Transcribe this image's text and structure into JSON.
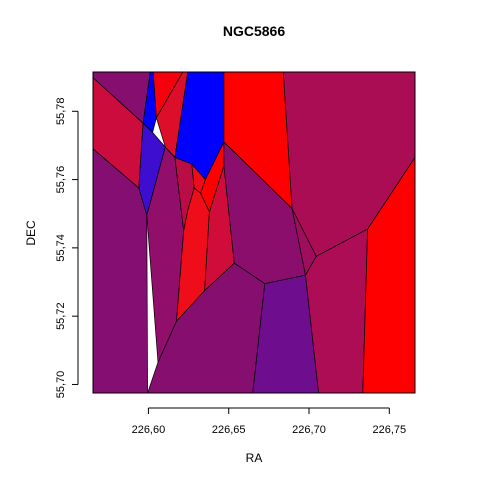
{
  "chart_data": {
    "type": "voronoi",
    "title": "NGC5866",
    "xlabel": "RA",
    "ylabel": "DEC",
    "xlim": [
      226.5655,
      226.766
    ],
    "ylim": [
      55.6975,
      55.7915
    ],
    "grid": false,
    "x_ticks": [
      226.6,
      226.65,
      226.7,
      226.75
    ],
    "x_tick_labels": [
      "226,60",
      "226,65",
      "226,70",
      "226,75"
    ],
    "y_ticks": [
      55.7,
      55.72,
      55.74,
      55.76,
      55.78
    ],
    "y_tick_labels": [
      "55,70",
      "55,72",
      "55,74",
      "55,76",
      "55,78"
    ],
    "cells": [
      {
        "color": "#850e6e",
        "polygon": [
          [
            226.5655,
            55.7915
          ],
          [
            226.6012,
            55.7915
          ],
          [
            226.5967,
            55.7765
          ],
          [
            226.5655,
            55.7898
          ]
        ]
      },
      {
        "color": "#0000ff",
        "polygon": [
          [
            226.6012,
            55.7915
          ],
          [
            226.603,
            55.7915
          ],
          [
            226.605,
            55.7781
          ],
          [
            226.6026,
            55.7738
          ],
          [
            226.5967,
            55.7765
          ]
        ]
      },
      {
        "color": "#f7000d",
        "polygon": [
          [
            226.603,
            55.7915
          ],
          [
            226.6215,
            55.7915
          ],
          [
            226.605,
            55.7781
          ]
        ]
      },
      {
        "color": "#dc0e2a",
        "polygon": [
          [
            226.6215,
            55.7915
          ],
          [
            226.6245,
            55.7915
          ],
          [
            226.6165,
            55.7665
          ],
          [
            226.6105,
            55.7695
          ],
          [
            226.605,
            55.7781
          ]
        ]
      },
      {
        "color": "#0000ff",
        "polygon": [
          [
            226.6245,
            55.7915
          ],
          [
            226.647,
            55.7915
          ],
          [
            226.647,
            55.771
          ],
          [
            226.6355,
            55.76
          ],
          [
            226.627,
            55.7645
          ],
          [
            226.6165,
            55.7665
          ]
        ]
      },
      {
        "color": "#ff0000",
        "polygon": [
          [
            226.647,
            55.7915
          ],
          [
            226.684,
            55.7915
          ],
          [
            226.6895,
            55.7515
          ],
          [
            226.647,
            55.771
          ]
        ]
      },
      {
        "color": "#ab0d55",
        "polygon": [
          [
            226.684,
            55.7915
          ],
          [
            226.766,
            55.7915
          ],
          [
            226.766,
            55.7665
          ],
          [
            226.7365,
            55.7455
          ],
          [
            226.7045,
            55.7375
          ],
          [
            226.6895,
            55.7515
          ]
        ]
      },
      {
        "color": "#cd0c3e",
        "polygon": [
          [
            226.5655,
            55.7898
          ],
          [
            226.5967,
            55.7765
          ],
          [
            226.594,
            55.7575
          ],
          [
            226.5655,
            55.769
          ]
        ]
      },
      {
        "color": "#3d0ed0",
        "polygon": [
          [
            226.5967,
            55.7765
          ],
          [
            226.6026,
            55.7738
          ],
          [
            226.6105,
            55.7695
          ],
          [
            226.599,
            55.7495
          ],
          [
            226.594,
            55.7575
          ]
        ]
      },
      {
        "color": "#850e72",
        "polygon": [
          [
            226.5655,
            55.769
          ],
          [
            226.594,
            55.7575
          ],
          [
            226.599,
            55.7495
          ],
          [
            226.5995,
            55.6975
          ],
          [
            226.5655,
            55.6975
          ]
        ]
      },
      {
        "color": "#910e6a",
        "polygon": [
          [
            226.6105,
            55.7695
          ],
          [
            226.6165,
            55.7665
          ],
          [
            226.622,
            55.745
          ],
          [
            226.6175,
            55.7185
          ],
          [
            226.606,
            55.7065
          ],
          [
            226.599,
            55.7495
          ]
        ]
      },
      {
        "color": "#bb0d45",
        "polygon": [
          [
            226.6165,
            55.7665
          ],
          [
            226.627,
            55.7645
          ],
          [
            226.6285,
            55.7575
          ],
          [
            226.6245,
            55.751
          ],
          [
            226.622,
            55.745
          ]
        ]
      },
      {
        "color": "#ee0c1a",
        "polygon": [
          [
            226.627,
            55.7645
          ],
          [
            226.6355,
            55.76
          ],
          [
            226.6325,
            55.756
          ],
          [
            226.6285,
            55.7575
          ]
        ]
      },
      {
        "color": "#ff0000",
        "polygon": [
          [
            226.6355,
            55.76
          ],
          [
            226.647,
            55.771
          ],
          [
            226.647,
            55.764
          ],
          [
            226.638,
            55.7505
          ],
          [
            226.6325,
            55.756
          ]
        ]
      },
      {
        "color": "#ef0d1a",
        "polygon": [
          [
            226.6245,
            55.751
          ],
          [
            226.6285,
            55.7575
          ],
          [
            226.6325,
            55.756
          ],
          [
            226.638,
            55.7505
          ],
          [
            226.635,
            55.7275
          ],
          [
            226.6175,
            55.7185
          ],
          [
            226.622,
            55.745
          ]
        ]
      },
      {
        "color": "#d00c3a",
        "polygon": [
          [
            226.638,
            55.7505
          ],
          [
            226.647,
            55.764
          ],
          [
            226.6535,
            55.7355
          ],
          [
            226.635,
            55.7275
          ]
        ]
      },
      {
        "color": "#8b0d6c",
        "polygon": [
          [
            226.647,
            55.771
          ],
          [
            226.6895,
            55.7515
          ],
          [
            226.6978,
            55.732
          ],
          [
            226.6725,
            55.7295
          ],
          [
            226.6535,
            55.7355
          ],
          [
            226.647,
            55.764
          ]
        ]
      },
      {
        "color": "#9e0e5c",
        "polygon": [
          [
            226.6895,
            55.7515
          ],
          [
            226.7045,
            55.7375
          ],
          [
            226.6978,
            55.732
          ]
        ]
      },
      {
        "color": "#850e6e",
        "polygon": [
          [
            226.606,
            55.7065
          ],
          [
            226.6175,
            55.7185
          ],
          [
            226.635,
            55.7275
          ],
          [
            226.6535,
            55.7355
          ],
          [
            226.6725,
            55.7295
          ],
          [
            226.665,
            55.6975
          ],
          [
            226.5995,
            55.6975
          ]
        ]
      },
      {
        "color": "#6e0e8f",
        "polygon": [
          [
            226.6725,
            55.7295
          ],
          [
            226.6978,
            55.732
          ],
          [
            226.706,
            55.6975
          ],
          [
            226.665,
            55.6975
          ]
        ]
      },
      {
        "color": "#ad0d55",
        "polygon": [
          [
            226.6978,
            55.732
          ],
          [
            226.7045,
            55.7375
          ],
          [
            226.7365,
            55.7455
          ],
          [
            226.7335,
            55.6975
          ],
          [
            226.706,
            55.6975
          ]
        ]
      },
      {
        "color": "#ff0000",
        "polygon": [
          [
            226.7365,
            55.7455
          ],
          [
            226.766,
            55.7665
          ],
          [
            226.766,
            55.6975
          ],
          [
            226.7335,
            55.6975
          ]
        ]
      }
    ]
  }
}
